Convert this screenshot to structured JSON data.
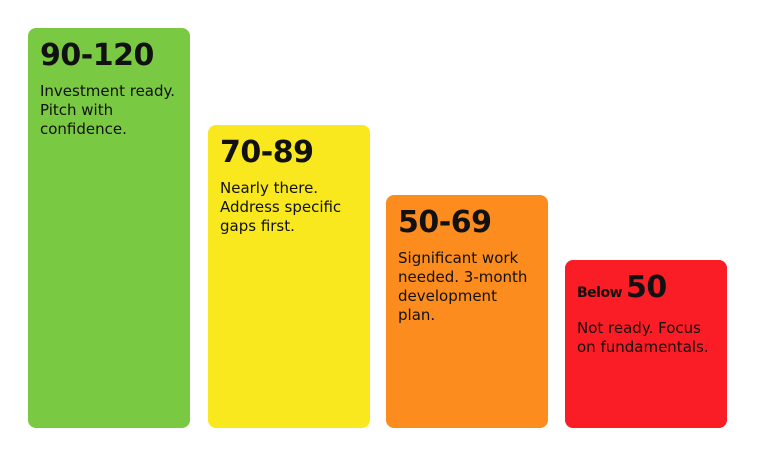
{
  "cards": [
    {
      "range": "90-120",
      "color": "#7ac943",
      "description": [
        "Investment ready.",
        "Pitch with",
        "confidence."
      ]
    },
    {
      "range": "70-89",
      "color": "#f9e81e",
      "description": [
        "Nearly there.",
        "Address specific",
        "gaps first."
      ]
    },
    {
      "range": "50-69",
      "color": "#fb8c1d",
      "description": [
        "Significant work",
        "needed. 3-month",
        "development",
        "plan."
      ]
    },
    {
      "prefix": "Below",
      "range": "50",
      "color": "#fb1d25",
      "description": [
        "Not ready. Focus",
        "on fundamentals."
      ]
    }
  ]
}
